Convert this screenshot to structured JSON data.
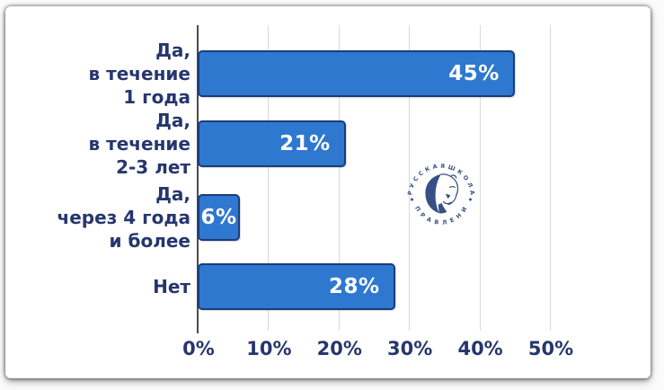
{
  "chart_data": {
    "type": "bar",
    "orientation": "horizontal",
    "title": "",
    "xlabel": "",
    "ylabel": "",
    "categories": [
      "Да,\nв течение\n1 года",
      "Да,\nв течение\n2-3 лет",
      "Да,\nчерез 4 года\nи более",
      "Нет"
    ],
    "values": [
      45,
      21,
      6,
      28
    ],
    "value_labels": [
      "45%",
      "21%",
      "6%",
      "28%"
    ],
    "x_ticks": [
      "0%",
      "10%",
      "20%",
      "30%",
      "40%",
      "50%"
    ],
    "x_tick_values": [
      0,
      10,
      20,
      30,
      40,
      50
    ],
    "xlim": [
      0,
      50
    ],
    "grid": "vertical-gridlines",
    "legend_position": "none"
  },
  "watermark": {
    "top_text": "• Р У С С К А Я   Ш К О Л А •",
    "bottom_text": "У П Р А В Л Е Н И Я"
  },
  "colors": {
    "bar_fill": "#2e78d0",
    "bar_border": "#1b3c7a",
    "value_text": "#ffffff",
    "text_navy": "#26366d",
    "grid_line": "#d9d9d9",
    "axis_line": "#4d4d4d",
    "logo_navy": "#27427c",
    "card_background": "#ffffff"
  }
}
